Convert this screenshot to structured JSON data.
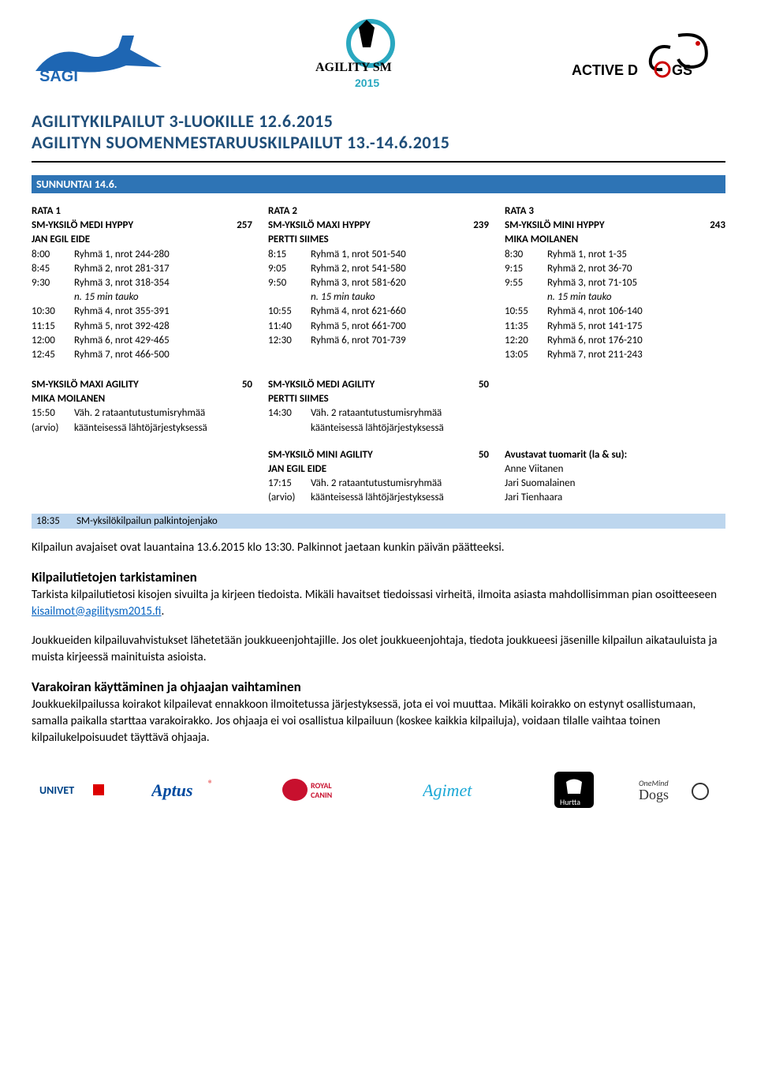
{
  "colors": {
    "title": "#1f4e79",
    "dayHeaderBg": "#2e74b5",
    "dayHeaderText": "#ffffff",
    "prizeRowBg": "#bdd6ee",
    "link": "#0563c1",
    "sagiBlue": "#1e66b3"
  },
  "header": {
    "logos": {
      "left": "SAGI",
      "center": "AGILITY SM Oulu 2015",
      "right": "ACTIVE DOGS"
    },
    "title1": "AGILITYKILPAILUT 3-LUOKILLE 12.6.2015",
    "title2": "AGILITYN SUOMENMESTARUUSKILPAILUT 13.-14.6.2015"
  },
  "dayHeader": "SUNNUNTAI 14.6.",
  "ratas": {
    "rata1": {
      "label": "RATA 1",
      "event": "SM-YKSILÖ MEDI HYPPY",
      "count": "257",
      "judge": "JAN EGIL EIDE",
      "rows": [
        {
          "t": "8:00",
          "txt": "Ryhmä 1, nrot 244-280"
        },
        {
          "t": "8:45",
          "txt": "Ryhmä 2, nrot 281-317"
        },
        {
          "t": "9:30",
          "txt": "Ryhmä 3, nrot 318-354"
        },
        {
          "t": "",
          "txt": "n. 15 min tauko",
          "italic": true
        },
        {
          "t": "10:30",
          "txt": "Ryhmä 4, nrot 355-391"
        },
        {
          "t": "11:15",
          "txt": "Ryhmä 5, nrot 392-428"
        },
        {
          "t": "12:00",
          "txt": "Ryhmä 6, nrot 429-465"
        },
        {
          "t": "12:45",
          "txt": "Ryhmä 7, nrot 466-500"
        }
      ]
    },
    "rata2": {
      "label": "RATA 2",
      "event": "SM-YKSILÖ MAXI HYPPY",
      "count": "239",
      "judge": "PERTTI SIIMES",
      "rows": [
        {
          "t": "8:15",
          "txt": "Ryhmä 1, nrot 501-540"
        },
        {
          "t": "9:05",
          "txt": "Ryhmä 2, nrot 541-580"
        },
        {
          "t": "9:50",
          "txt": "Ryhmä 3, nrot 581-620"
        },
        {
          "t": "",
          "txt": "n. 15 min tauko",
          "italic": true
        },
        {
          "t": "10:55",
          "txt": "Ryhmä 4, nrot 621-660"
        },
        {
          "t": "11:40",
          "txt": "Ryhmä 5, nrot 661-700"
        },
        {
          "t": "12:30",
          "txt": "Ryhmä 6, nrot 701-739"
        }
      ]
    },
    "rata3": {
      "label": "RATA 3",
      "event": "SM-YKSILÖ MINI HYPPY",
      "count": "243",
      "judge": "MIKA MOILANEN",
      "rows": [
        {
          "t": "8:30",
          "txt": "Ryhmä 1, nrot 1-35"
        },
        {
          "t": "9:15",
          "txt": "Ryhmä 2, nrot 36-70"
        },
        {
          "t": "9:55",
          "txt": "Ryhmä 3, nrot 71-105"
        },
        {
          "t": "",
          "txt": "n. 15 min tauko",
          "italic": true
        },
        {
          "t": "10:55",
          "txt": "Ryhmä 4, nrot 106-140"
        },
        {
          "t": "11:35",
          "txt": "Ryhmä 5, nrot 141-175"
        },
        {
          "t": "12:20",
          "txt": "Ryhmä 6, nrot 176-210"
        },
        {
          "t": "13:05",
          "txt": "Ryhmä 7, nrot 211-243"
        }
      ]
    }
  },
  "agility": {
    "maxi": {
      "event": "SM-YKSILÖ MAXI AGILITY",
      "count": "50",
      "judge": "MIKA MOILANEN",
      "time": "15:50",
      "line1": "Väh. 2 rataantutustumisryhmää",
      "arvio": "(arvio)",
      "line2": "käänteisessä lähtöjärjestyksessä"
    },
    "medi": {
      "event": "SM-YKSILÖ MEDI AGILITY",
      "count": "50",
      "judge": "PERTTI SIIMES",
      "time": "14:30",
      "line1": "Väh. 2 rataantutustumisryhmää",
      "line2": "käänteisessä lähtöjärjestyksessä"
    },
    "mini": {
      "event": "SM-YKSILÖ MINI AGILITY",
      "count": "50",
      "judge": "JAN EGIL EIDE",
      "time": "17:15",
      "line1": "Väh. 2 rataantutustumisryhmää",
      "arvio": "(arvio)",
      "line2": "käänteisessä lähtöjärjestyksessä"
    }
  },
  "assistJudges": {
    "heading": "Avustavat tuomarit (la & su):",
    "names": [
      "Anne Viitanen",
      "Jari Suomalainen",
      "Jari Tienhaara"
    ]
  },
  "prizeRow": {
    "time": "18:35",
    "text": "SM-yksilökilpailun palkintojenjako"
  },
  "body": {
    "avajaiset": "Kilpailun avajaiset ovat lauantaina 13.6.2015 klo 13:30. Palkinnot jaetaan kunkin päivän päätteeksi.",
    "tarkHeading": "Kilpailutietojen tarkistaminen",
    "tarkText1": "Tarkista kilpailutietosi kisojen sivuilta ja kirjeen tiedoista. Mikäli havaitset tiedoissasi virheitä, ilmoita asiasta mahdollisimman pian osoitteeseen ",
    "tarkLink": "kisailmot@agilitysm2015.fi",
    "tarkText2": ".",
    "joukkue1": "Joukkueiden kilpailuvahvistukset lähetetään joukkueenjohtajille. Jos olet joukkueenjohtaja, tiedota joukkueesi jäsenille kilpailun aikatauluista ja muista kirjeessä mainituista asioista.",
    "varaHeading": "Varakoiran käyttäminen ja ohjaajan vaihtaminen",
    "varaText": "Joukkuekilpailussa koirakot kilpailevat ennakkoon ilmoitetussa järjestyksessä, jota ei voi muuttaa. Mikäli koirakko on estynyt osallistumaan, samalla paikalla starttaa varakoirakko. Jos ohjaaja ei voi osallistua kilpailuun (koskee kaikkia kilpailuja), voidaan tilalle vaihtaa toinen kilpailukelpoisuudet täyttävä ohjaaja."
  },
  "footer": {
    "logos": [
      "UNIVET",
      "Aptus",
      "ROYAL CANIN",
      "Agimet",
      "Hurtta",
      "OneMind Dogs"
    ]
  }
}
